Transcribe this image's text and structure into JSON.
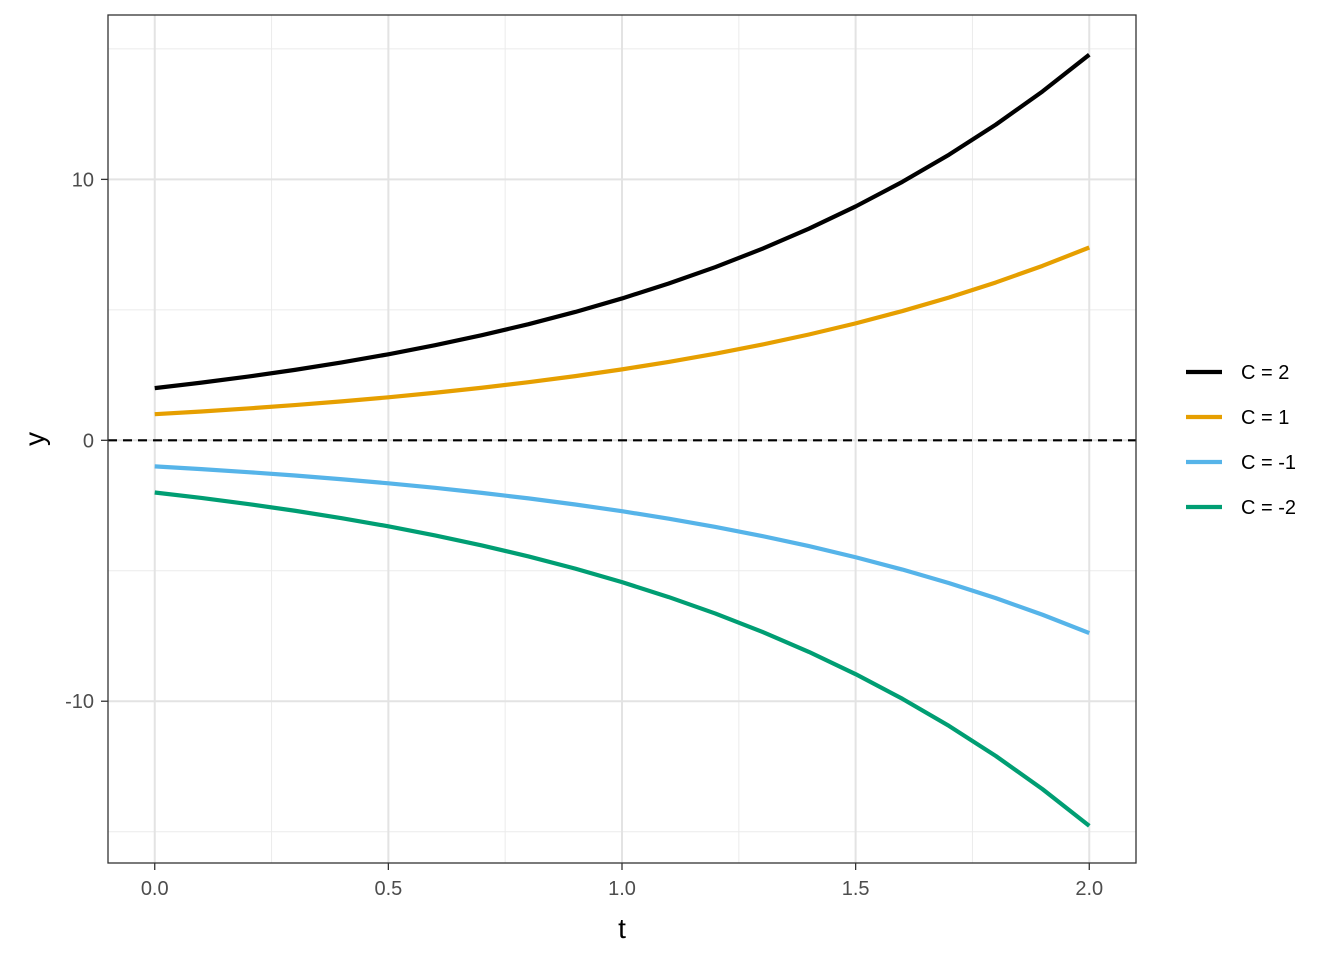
{
  "chart_data": {
    "type": "line",
    "title": "",
    "xlabel": "t",
    "ylabel": "y",
    "xlim": [
      -0.1,
      2.1
    ],
    "ylim": [
      -16.2,
      16.3
    ],
    "x_ticks": [
      "0.0",
      "0.5",
      "1.0",
      "1.5",
      "2.0"
    ],
    "y_ticks": [
      "-10",
      "0",
      "10"
    ],
    "x_tick_values": [
      0,
      0.5,
      1.0,
      1.5,
      2.0
    ],
    "y_tick_values": [
      -10,
      0,
      10
    ],
    "x_minor_values": [
      0.25,
      0.75,
      1.25,
      1.75
    ],
    "y_minor_values": [
      -15,
      -5,
      5,
      15
    ],
    "grid": true,
    "legend_position": "right",
    "reference_line": {
      "y": 0,
      "style": "dashed",
      "color": "#000000"
    },
    "x": [
      0,
      0.1,
      0.2,
      0.3,
      0.4,
      0.5,
      0.6,
      0.7,
      0.8,
      0.9,
      1.0,
      1.1,
      1.2,
      1.3,
      1.4,
      1.5,
      1.6,
      1.7,
      1.8,
      1.9,
      2.0
    ],
    "series": [
      {
        "name": "C = 2",
        "color": "#000000",
        "values": [
          2.0,
          2.21,
          2.443,
          2.7,
          2.984,
          3.297,
          3.644,
          4.028,
          4.451,
          4.919,
          5.437,
          6.008,
          6.64,
          7.338,
          8.11,
          8.963,
          9.906,
          10.948,
          12.099,
          13.372,
          14.778
        ]
      },
      {
        "name": "C = 1",
        "color": "#E69F00",
        "values": [
          1.0,
          1.105,
          1.221,
          1.35,
          1.492,
          1.649,
          1.822,
          2.014,
          2.226,
          2.46,
          2.718,
          3.004,
          3.32,
          3.669,
          4.055,
          4.482,
          4.953,
          5.474,
          6.05,
          6.686,
          7.389
        ]
      },
      {
        "name": "C = -1",
        "color": "#56B4E9",
        "values": [
          -1.0,
          -1.105,
          -1.221,
          -1.35,
          -1.492,
          -1.649,
          -1.822,
          -2.014,
          -2.226,
          -2.46,
          -2.718,
          -3.004,
          -3.32,
          -3.669,
          -4.055,
          -4.482,
          -4.953,
          -5.474,
          -6.05,
          -6.686,
          -7.389
        ]
      },
      {
        "name": "C = -2",
        "color": "#009E73",
        "values": [
          -2.0,
          -2.21,
          -2.443,
          -2.7,
          -2.984,
          -3.297,
          -3.644,
          -4.028,
          -4.451,
          -4.919,
          -5.437,
          -6.008,
          -6.64,
          -7.338,
          -8.11,
          -8.963,
          -9.906,
          -10.948,
          -12.099,
          -13.372,
          -14.778
        ]
      }
    ]
  }
}
